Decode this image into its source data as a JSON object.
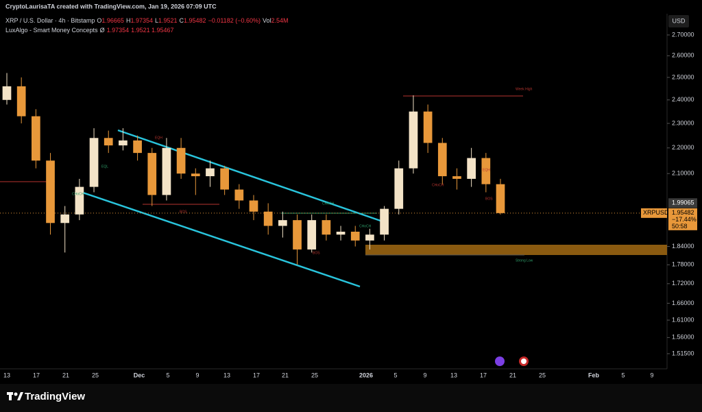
{
  "header": {
    "credit": "CryptoLaurisaTA created with TradingView.com, Jan 19, 2026 07:09 UTC",
    "symbol": "XRP / U.S. Dollar · 4h · Bitstamp",
    "ohlc": [
      {
        "key": "O",
        "value": 1.96665
      },
      {
        "key": "H",
        "value": 1.97354
      },
      {
        "key": "L",
        "value": 1.9521
      },
      {
        "key": "C",
        "value": 1.95482
      }
    ],
    "change": "−0.01182 (−0.60%)",
    "volume_key": "Vol",
    "volume": "2.54M",
    "indicator": "LuxAlgo - Smart Money Concepts",
    "indicator_flag": "Ø",
    "indicator_values": [
      1.97354,
      1.9521,
      1.95467
    ]
  },
  "chart_data": {
    "type": "candlestick",
    "currency": "USD",
    "log_scale": true,
    "ylim": [
      1.474,
      2.806
    ],
    "yticks": [
      {
        "value": 2.7,
        "label": "2.70000"
      },
      {
        "value": 2.6,
        "label": "2.60000"
      },
      {
        "value": 2.5,
        "label": "2.50000"
      },
      {
        "value": 2.4,
        "label": "2.40000"
      },
      {
        "value": 2.3,
        "label": "2.30000"
      },
      {
        "value": 2.2,
        "label": "2.20000"
      },
      {
        "value": 2.1,
        "label": "2.10000"
      },
      {
        "value": 1.84,
        "label": "1.84000"
      },
      {
        "value": 1.78,
        "label": "1.78000"
      },
      {
        "value": 1.72,
        "label": "1.72000"
      },
      {
        "value": 1.66,
        "label": "1.66000"
      },
      {
        "value": 1.61,
        "label": "1.61000"
      },
      {
        "value": 1.56,
        "label": "1.56000"
      },
      {
        "value": 1.515,
        "label": "1.51500"
      }
    ],
    "x_labels": [
      "13",
      "17",
      "21",
      "25",
      "Dec",
      "5",
      "9",
      "13",
      "17",
      "21",
      "25",
      "2026",
      "5",
      "9",
      "13",
      "17",
      "21",
      "25",
      "Feb",
      "5",
      "9"
    ],
    "candles": {
      "open": [
        2.4,
        2.46,
        2.33,
        2.15,
        1.92,
        1.95,
        2.05,
        2.24,
        2.21,
        2.23,
        2.18,
        2.02,
        2.2,
        2.1,
        2.09,
        2.12,
        2.04,
        2.0,
        1.96,
        1.91,
        1.93,
        1.83,
        1.93,
        1.88,
        1.89,
        1.86,
        1.88,
        1.97,
        2.12,
        2.35,
        2.22,
        2.09,
        2.08,
        2.16,
        2.06
      ],
      "high": [
        2.52,
        2.5,
        2.36,
        2.18,
        1.98,
        2.08,
        2.28,
        2.27,
        2.28,
        2.25,
        2.2,
        2.24,
        2.24,
        2.12,
        2.15,
        2.13,
        2.06,
        2.02,
        1.99,
        1.96,
        1.95,
        1.95,
        1.95,
        1.91,
        1.91,
        1.9,
        1.98,
        2.15,
        2.42,
        2.38,
        2.24,
        2.12,
        2.2,
        2.18,
        2.08
      ],
      "low": [
        2.38,
        2.3,
        2.12,
        1.88,
        1.82,
        1.93,
        2.03,
        2.18,
        2.19,
        2.15,
        1.98,
        2.0,
        2.08,
        2.02,
        2.05,
        2.02,
        1.97,
        1.93,
        1.88,
        1.87,
        1.78,
        1.82,
        1.86,
        1.86,
        1.84,
        1.83,
        1.86,
        1.95,
        2.1,
        2.18,
        2.06,
        2.04,
        2.05,
        2.03,
        1.95
      ],
      "close": [
        2.46,
        2.33,
        2.15,
        1.92,
        1.95,
        2.05,
        2.24,
        2.21,
        2.23,
        2.18,
        2.02,
        2.2,
        2.1,
        2.09,
        2.12,
        2.04,
        2.0,
        1.96,
        1.91,
        1.93,
        1.83,
        1.93,
        1.88,
        1.89,
        1.86,
        1.88,
        1.97,
        2.12,
        2.35,
        2.22,
        2.09,
        2.08,
        2.16,
        2.06,
        1.95482
      ]
    },
    "colors": {
      "up": "#f3e3c7",
      "down": "#e8983a",
      "channel": "#29c4dc",
      "zone": "#8a5a10"
    },
    "marker_price": 1.99065,
    "last_price": {
      "symbol": "XRPUSD",
      "value": 1.95482,
      "change": "−17.44%",
      "countdown": "50:58"
    },
    "annotations": [
      "Week High",
      "Strong Low",
      "CHoCH",
      "BOS",
      "EQH",
      "EQL",
      "CHoCH",
      "BOS",
      "CHoCH",
      "EQH",
      "CHoCH",
      "BOS"
    ]
  },
  "footer": {
    "brand": "TradingView"
  }
}
